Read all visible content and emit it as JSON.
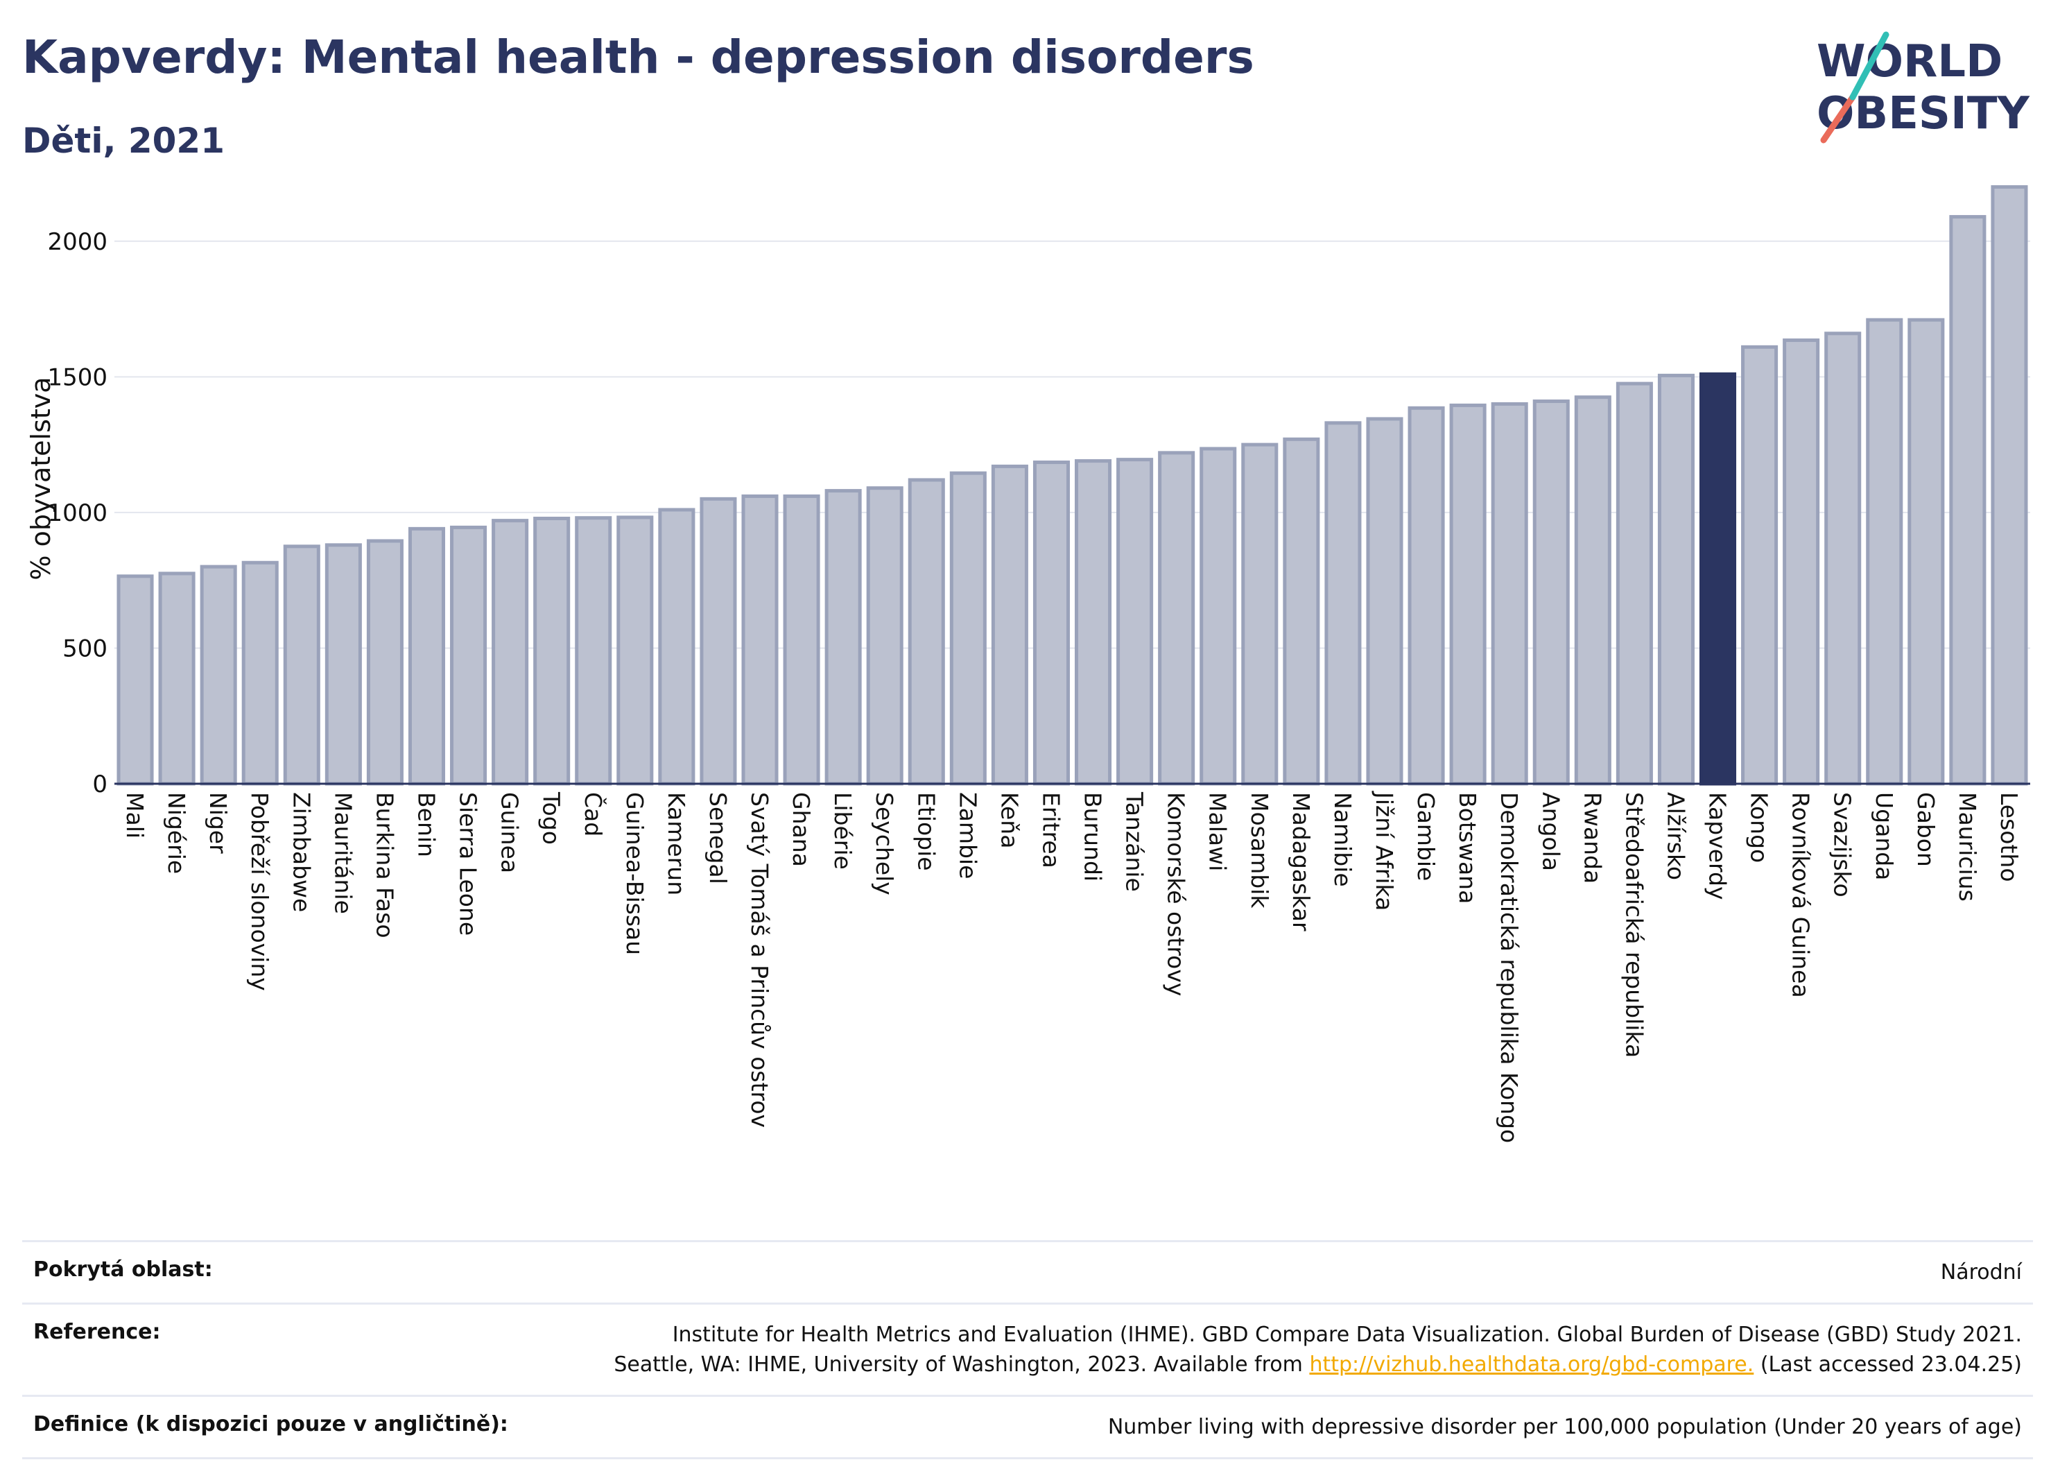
{
  "header": {
    "title": "Kapverdy: Mental health - depression disorders",
    "subtitle": "Děti, 2021"
  },
  "logo": {
    "line1": "WORLD",
    "line2": "OBESITY"
  },
  "colors": {
    "bar": "#bcc1d0",
    "bar_border": "#9aa2ba",
    "highlight": "#2b3561",
    "grid": "#e3e6ee",
    "axis": "#2b3561"
  },
  "chart_data": {
    "type": "bar",
    "ylabel": "% obyvatelstva",
    "ylim": [
      0,
      2250
    ],
    "yticks": [
      0,
      500,
      1000,
      1500,
      2000
    ],
    "grid": true,
    "highlight": "Kapverdy",
    "categories": [
      "Mali",
      "Nigérie",
      "Niger",
      "Pobřeží slonoviny",
      "Zimbabwe",
      "Mauritánie",
      "Burkina Faso",
      "Benin",
      "Sierra Leone",
      "Guinea",
      "Togo",
      "Čad",
      "Guinea-Bissau",
      "Kamerun",
      "Senegal",
      "Svatý Tomáš a Princův ostrov",
      "Ghana",
      "Libérie",
      "Seychely",
      "Etiopie",
      "Zambie",
      "Keňa",
      "Eritrea",
      "Burundi",
      "Tanzánie",
      "Komorské ostrovy",
      "Malawi",
      "Mosambik",
      "Madagaskar",
      "Namibie",
      "Jižní Afrika",
      "Gambie",
      "Botswana",
      "Demokratická republika Kongo",
      "Angola",
      "Rwanda",
      "Středoafrická republika",
      "Alžírsko",
      "Kapverdy",
      "Kongo",
      "Rovníková Guinea",
      "Svazijsko",
      "Uganda",
      "Gabon",
      "Mauricius",
      "Lesotho"
    ],
    "values": [
      765,
      775,
      800,
      815,
      875,
      880,
      895,
      940,
      945,
      970,
      978,
      980,
      982,
      1010,
      1050,
      1060,
      1060,
      1080,
      1090,
      1120,
      1145,
      1170,
      1185,
      1190,
      1195,
      1220,
      1235,
      1250,
      1270,
      1330,
      1345,
      1385,
      1395,
      1400,
      1410,
      1425,
      1475,
      1505,
      1510,
      1610,
      1635,
      1660,
      1710,
      1710,
      2090,
      2200
    ]
  },
  "footer": {
    "rows": [
      {
        "label": "Pokrytá oblast:",
        "lines": [
          "Národní"
        ]
      },
      {
        "label": "Reference:",
        "lines": [
          "Institute for Health Metrics and Evaluation (IHME). GBD Compare Data Visualization. Global Burden of Disease (GBD) Study 2021.",
          "Seattle, WA: IHME, University of Washington, 2023. Available from"
        ],
        "link": "http://vizhub.healthdata.org/gbd-compare.",
        "after_link": " (Last accessed 23.04.25)"
      },
      {
        "label": "Definice (k dispozici pouze v angličtině):",
        "lines": [
          "Number living with depressive disorder per 100,000 population (Under 20 years of age)"
        ]
      }
    ]
  }
}
